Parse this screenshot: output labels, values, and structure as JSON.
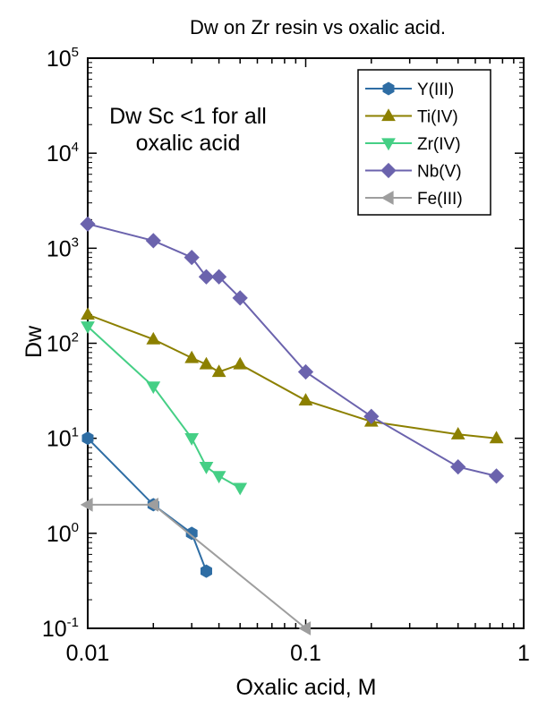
{
  "chart_data": {
    "type": "line",
    "title": "Dw on Zr resin vs oxalic acid.",
    "xlabel": "Oxalic acid, M",
    "ylabel": "Dw",
    "xscale": "log",
    "yscale": "log",
    "xlim": [
      0.01,
      1
    ],
    "ylim": [
      0.1,
      100000
    ],
    "x_tick_labels": [
      "0.01",
      "0.1",
      "1"
    ],
    "y_tick_labels": [
      {
        "base": "10",
        "exp": "-1"
      },
      {
        "base": "10",
        "exp": "0"
      },
      {
        "base": "10",
        "exp": "1"
      },
      {
        "base": "10",
        "exp": "2"
      },
      {
        "base": "10",
        "exp": "3"
      },
      {
        "base": "10",
        "exp": "4"
      },
      {
        "base": "10",
        "exp": "5"
      }
    ],
    "annotation": [
      "Dw Sc <1 for all",
      "oxalic acid"
    ],
    "legend_position": "top-right",
    "series": [
      {
        "name": "Y(III)",
        "color": "#2e6da4",
        "marker": "hexagon",
        "x": [
          0.01,
          0.02,
          0.03,
          0.035
        ],
        "y": [
          10,
          2,
          1,
          0.4
        ]
      },
      {
        "name": "Ti(IV)",
        "color": "#8c8000",
        "marker": "triangle-up",
        "x": [
          0.01,
          0.02,
          0.03,
          0.035,
          0.04,
          0.05,
          0.1,
          0.2,
          0.5,
          0.75
        ],
        "y": [
          200,
          110,
          70,
          60,
          50,
          60,
          25,
          15,
          11,
          10
        ]
      },
      {
        "name": "Zr(IV)",
        "color": "#45cf85",
        "marker": "triangle-down",
        "x": [
          0.01,
          0.02,
          0.03,
          0.035,
          0.04,
          0.05
        ],
        "y": [
          150,
          35,
          10,
          5,
          4,
          3
        ]
      },
      {
        "name": "Nb(V)",
        "color": "#6b63ad",
        "marker": "diamond",
        "x": [
          0.01,
          0.02,
          0.03,
          0.035,
          0.04,
          0.05,
          0.1,
          0.2,
          0.5,
          0.75
        ],
        "y": [
          1800,
          1200,
          800,
          500,
          500,
          300,
          50,
          17,
          5,
          4
        ]
      },
      {
        "name": "Fe(III)",
        "color": "#9e9e9e",
        "marker": "triangle-left",
        "x": [
          0.01,
          0.02,
          0.1
        ],
        "y": [
          2,
          2,
          0.1
        ]
      }
    ]
  }
}
